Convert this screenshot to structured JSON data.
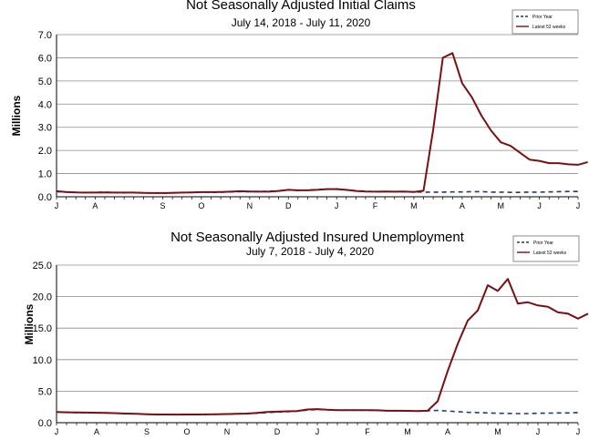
{
  "colors": {
    "prior_year": "#1f3a7a",
    "latest": "#7a1010",
    "grid": "#8c8c8c",
    "axis": "#000000",
    "text": "#000000"
  },
  "chart_data": [
    {
      "type": "line",
      "title": "Not Seasonally Adjusted Initial Claims",
      "subtitle": "July 14, 2018  - July 11, 2020",
      "ylabel": "Millions",
      "xlabel": "",
      "ylim": [
        0,
        7
      ],
      "ytick_labels": [
        "0.0",
        "1.0",
        "2.0",
        "3.0",
        "4.0",
        "5.0",
        "6.0",
        "7.0"
      ],
      "xtick_labels": [
        {
          "week": 0,
          "label": "J"
        },
        {
          "week": 4,
          "label": "A"
        },
        {
          "week": 11,
          "label": "S"
        },
        {
          "week": 15,
          "label": "O"
        },
        {
          "week": 20,
          "label": "N"
        },
        {
          "week": 24,
          "label": "D"
        },
        {
          "week": 29,
          "label": "J"
        },
        {
          "week": 33,
          "label": "F"
        },
        {
          "week": 37,
          "label": "M"
        },
        {
          "week": 42,
          "label": "A"
        },
        {
          "week": 46,
          "label": "M"
        },
        {
          "week": 50,
          "label": "J"
        },
        {
          "week": 54,
          "label": "J"
        }
      ],
      "x_range": [
        0,
        54
      ],
      "grid": true,
      "legend_position": "top-right",
      "series": [
        {
          "name": "Prior Year",
          "style": "dashed",
          "values": [
            0.22,
            0.2,
            0.19,
            0.18,
            0.19,
            0.2,
            0.18,
            0.17,
            0.18,
            0.17,
            0.16,
            0.15,
            0.17,
            0.18,
            0.19,
            0.2,
            0.19,
            0.2,
            0.21,
            0.22,
            0.22,
            0.23,
            0.24,
            0.26,
            0.3,
            0.27,
            0.29,
            0.31,
            0.33,
            0.34,
            0.3,
            0.26,
            0.24,
            0.22,
            0.23,
            0.22,
            0.22,
            0.21,
            0.2,
            0.2,
            0.2,
            0.21,
            0.21,
            0.22,
            0.22,
            0.2,
            0.2,
            0.19,
            0.19,
            0.2,
            0.2,
            0.21,
            0.22,
            0.23,
            0.23
          ]
        },
        {
          "name": "Latest 52 weeks",
          "style": "solid",
          "start_week": 0,
          "values": [
            0.24,
            0.21,
            0.19,
            0.18,
            0.18,
            0.19,
            0.18,
            0.18,
            0.18,
            0.17,
            0.16,
            0.16,
            0.17,
            0.18,
            0.19,
            0.2,
            0.2,
            0.21,
            0.22,
            0.24,
            0.23,
            0.22,
            0.22,
            0.25,
            0.3,
            0.28,
            0.28,
            0.3,
            0.33,
            0.33,
            0.3,
            0.25,
            0.23,
            0.22,
            0.23,
            0.22,
            0.23,
            0.21,
            0.26,
            2.9,
            6.0,
            6.2,
            4.9,
            4.3,
            3.5,
            2.85,
            2.35,
            2.2,
            1.9,
            1.6,
            1.55,
            1.45,
            1.45,
            1.4,
            1.38,
            1.5
          ]
        }
      ]
    },
    {
      "type": "line",
      "title": "Not Seasonally Adjusted Insured Unemployment",
      "subtitle": "July 7, 2018  - July 4, 2020",
      "ylabel": "Millions",
      "xlabel": "",
      "ylim": [
        0,
        25
      ],
      "ytick_labels": [
        "0.0",
        "5.0",
        "10.0",
        "15.0",
        "20.0",
        "25.0"
      ],
      "xtick_labels": [
        {
          "week": 0,
          "label": "J"
        },
        {
          "week": 4,
          "label": "A"
        },
        {
          "week": 9,
          "label": "S"
        },
        {
          "week": 13,
          "label": "O"
        },
        {
          "week": 17,
          "label": "N"
        },
        {
          "week": 22,
          "label": "D"
        },
        {
          "week": 26,
          "label": "J"
        },
        {
          "week": 31,
          "label": "F"
        },
        {
          "week": 35,
          "label": "M"
        },
        {
          "week": 39,
          "label": "A"
        },
        {
          "week": 44,
          "label": "M"
        },
        {
          "week": 48,
          "label": "J"
        },
        {
          "week": 52,
          "label": "J"
        }
      ],
      "x_range": [
        0,
        52
      ],
      "grid": true,
      "legend_position": "top-right",
      "series": [
        {
          "name": "Prior Year",
          "style": "dashed",
          "values": [
            1.7,
            1.65,
            1.6,
            1.6,
            1.58,
            1.55,
            1.5,
            1.45,
            1.4,
            1.35,
            1.3,
            1.3,
            1.3,
            1.3,
            1.3,
            1.32,
            1.35,
            1.38,
            1.4,
            1.45,
            1.5,
            1.6,
            1.7,
            1.75,
            1.85,
            2.0,
            2.1,
            2.05,
            2.0,
            2.0,
            2.0,
            1.98,
            1.95,
            1.9,
            1.9,
            1.88,
            1.85,
            1.9,
            1.95,
            1.85,
            1.75,
            1.65,
            1.6,
            1.55,
            1.5,
            1.48,
            1.45,
            1.45,
            1.5,
            1.52,
            1.55,
            1.55,
            1.6
          ]
        },
        {
          "name": "Latest 52 weeks",
          "style": "solid",
          "start_week": 0,
          "values": [
            1.7,
            1.65,
            1.62,
            1.6,
            1.58,
            1.55,
            1.5,
            1.45,
            1.4,
            1.35,
            1.3,
            1.3,
            1.28,
            1.3,
            1.3,
            1.32,
            1.35,
            1.38,
            1.42,
            1.45,
            1.55,
            1.7,
            1.75,
            1.8,
            1.85,
            2.1,
            2.15,
            2.05,
            2.0,
            2.0,
            2.0,
            1.98,
            1.97,
            1.9,
            1.9,
            1.88,
            1.85,
            1.9,
            3.4,
            8.2,
            12.5,
            16.2,
            17.8,
            21.8,
            20.9,
            22.8,
            18.9,
            19.1,
            18.6,
            18.4,
            17.5,
            17.3,
            16.5,
            17.3
          ]
        }
      ]
    }
  ]
}
